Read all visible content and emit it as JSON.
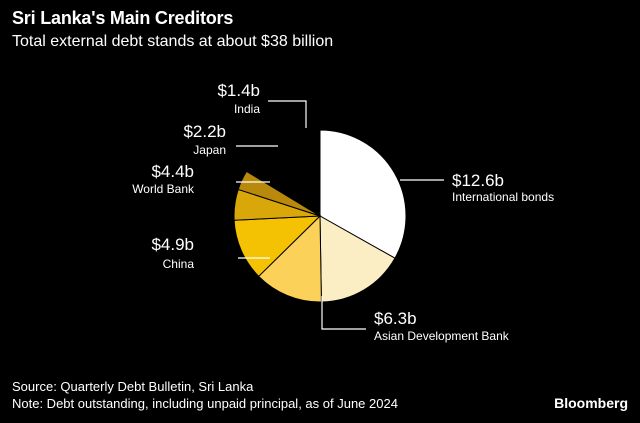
{
  "header": {
    "title": "Sri Lanka's Main Creditors",
    "subtitle": "Total external debt stands at about $38 billion"
  },
  "footer": {
    "source": "Source: Quarterly Debt Bulletin, Sri Lanka",
    "note": "Note: Debt outstanding, including unpaid principal, as of June 2024",
    "brand": "Bloomberg"
  },
  "chart_data": {
    "type": "pie",
    "title": "Sri Lanka's Main Creditors",
    "subtitle": "Total external debt stands at about $38 billion",
    "unit": "billion USD",
    "slices": [
      {
        "label": "International bonds",
        "value": 12.6,
        "value_label": "$12.6b",
        "color": "#ffffff"
      },
      {
        "label": "Asian Development Bank",
        "value": 6.3,
        "value_label": "$6.3b",
        "color": "#fbeec4"
      },
      {
        "label": "China",
        "value": 4.9,
        "value_label": "$4.9b",
        "color": "#fcd15a"
      },
      {
        "label": "World Bank",
        "value": 4.4,
        "value_label": "$4.4b",
        "color": "#f5c103"
      },
      {
        "label": "Japan",
        "value": 2.2,
        "value_label": "$2.2b",
        "color": "#d9a70a"
      },
      {
        "label": "India",
        "value": 1.4,
        "value_label": "$1.4b",
        "color": "#b8890a"
      }
    ],
    "remainder_color": "#000000",
    "start_angle": "12 o'clock",
    "direction": "clockwise",
    "legend": "none"
  }
}
